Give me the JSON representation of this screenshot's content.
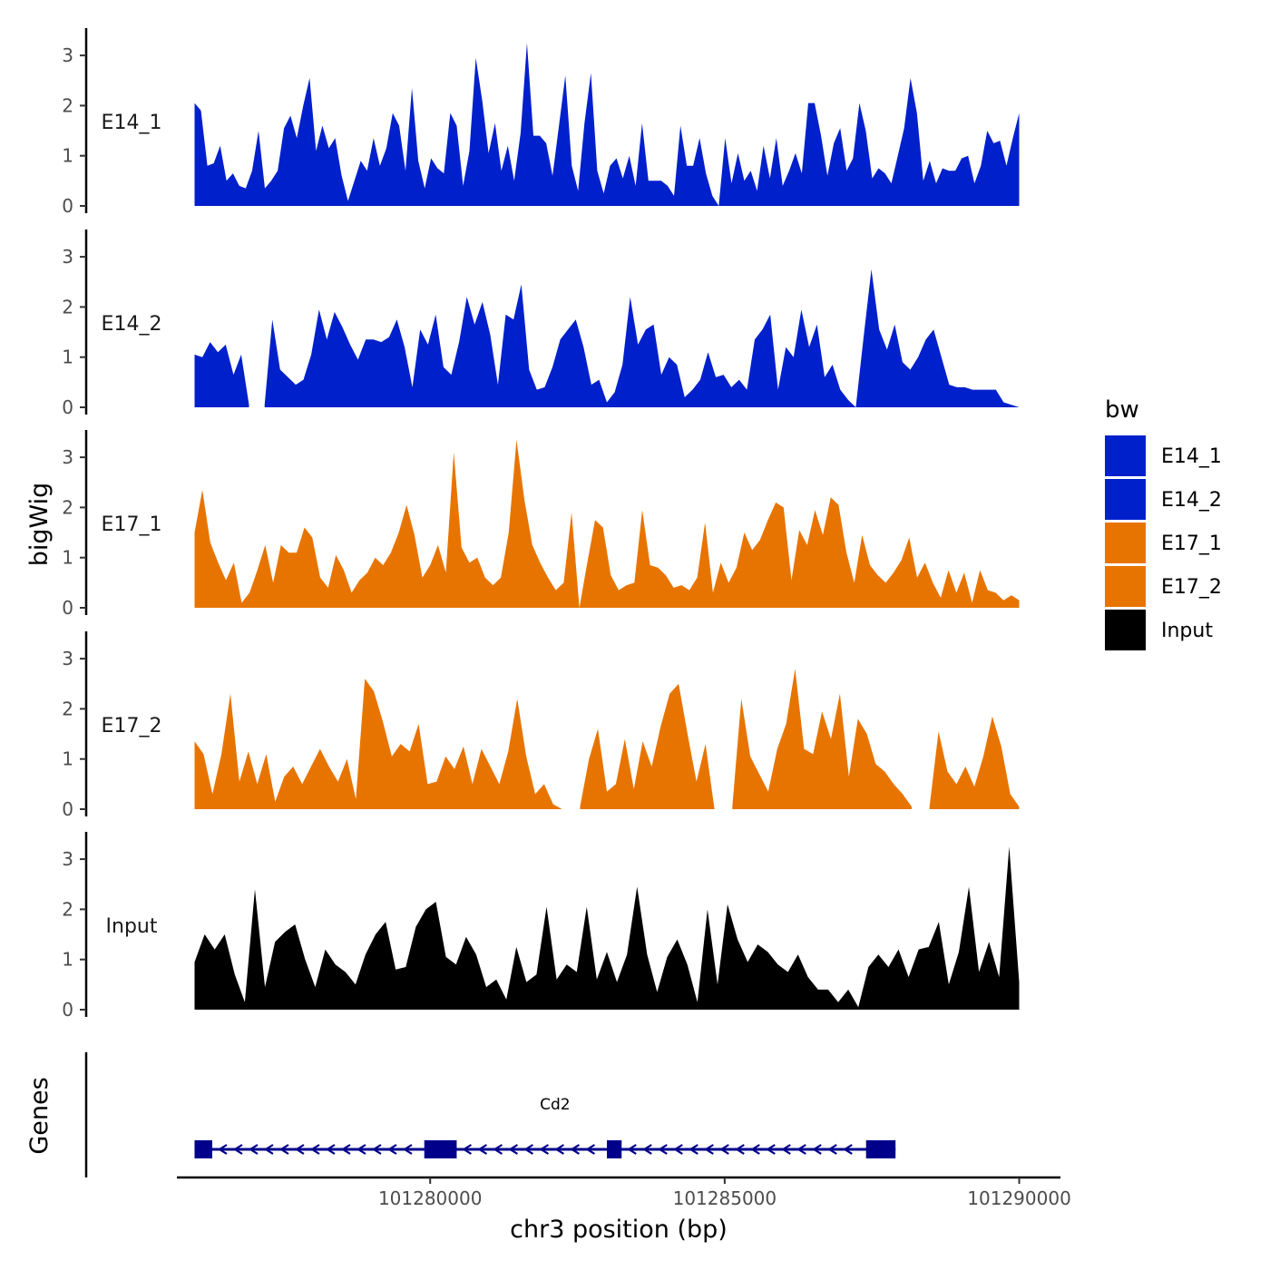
{
  "chart_data": {
    "type": "area",
    "ylabel": "bigWig",
    "xlabel": "chr3 position (bp)",
    "xlim": [
      101275700,
      101290700
    ],
    "ylim": [
      0,
      3.5
    ],
    "y_ticks": [
      "0",
      "1",
      "2",
      "3"
    ],
    "y_tick_values": [
      0,
      1,
      2,
      3
    ],
    "x_ticks": [
      "101280000",
      "101285000",
      "101290000"
    ],
    "x_tick_values": [
      101280000,
      101285000,
      101290000
    ],
    "data_start": 101276000,
    "data_end": 101290000,
    "legend": {
      "title": "bw",
      "position": "right",
      "items": [
        {
          "label": "E14_1",
          "color": "#0020CC"
        },
        {
          "label": "E14_2",
          "color": "#0020CC"
        },
        {
          "label": "E17_1",
          "color": "#E87400"
        },
        {
          "label": "E17_2",
          "color": "#E87400"
        },
        {
          "label": "Input",
          "color": "#000000"
        }
      ]
    },
    "series": [
      {
        "name": "E14_1",
        "color": "#0020CC",
        "values": [
          2.05,
          1.9,
          0.8,
          0.85,
          1.2,
          0.5,
          0.65,
          0.4,
          0.35,
          0.7,
          1.5,
          0.35,
          0.5,
          0.7,
          1.55,
          1.8,
          1.35,
          2.0,
          2.55,
          1.1,
          1.6,
          1.15,
          1.35,
          0.6,
          0.1,
          0.5,
          0.9,
          0.7,
          1.35,
          0.8,
          1.15,
          1.85,
          1.6,
          0.7,
          2.35,
          0.9,
          0.35,
          0.95,
          0.75,
          0.65,
          1.85,
          1.6,
          0.4,
          1.1,
          2.95,
          2.1,
          1.05,
          1.65,
          0.7,
          1.2,
          0.5,
          1.45,
          3.25,
          1.4,
          1.4,
          1.25,
          0.6,
          1.6,
          2.6,
          0.8,
          0.3,
          1.65,
          2.65,
          0.7,
          0.25,
          0.8,
          0.95,
          0.55,
          1.0,
          0.4,
          1.65,
          0.5,
          0.5,
          0.5,
          0.4,
          0.2,
          1.6,
          0.8,
          0.8,
          1.35,
          0.65,
          0.2,
          0.0,
          1.35,
          0.45,
          1.05,
          0.5,
          0.7,
          0.3,
          1.2,
          0.55,
          1.35,
          0.4,
          0.7,
          1.05,
          0.65,
          2.05,
          2.05,
          1.4,
          0.6,
          1.25,
          1.55,
          0.7,
          0.95,
          2.05,
          1.5,
          0.55,
          0.75,
          0.65,
          0.45,
          1.0,
          1.55,
          2.55,
          1.85,
          0.5,
          0.9,
          0.45,
          0.75,
          0.7,
          0.7,
          0.95,
          1.0,
          0.45,
          0.8,
          1.5,
          1.25,
          1.3,
          0.8,
          1.35,
          1.85
        ]
      },
      {
        "name": "E14_2",
        "color": "#0020CC",
        "values": [
          1.05,
          1.0,
          1.3,
          1.1,
          1.25,
          0.65,
          1.05,
          0.05,
          null,
          0.05,
          1.75,
          0.75,
          0.6,
          0.45,
          0.55,
          1.05,
          1.95,
          1.35,
          1.9,
          1.6,
          1.25,
          0.95,
          1.35,
          1.35,
          1.3,
          1.4,
          1.75,
          1.2,
          0.4,
          1.55,
          1.25,
          1.85,
          0.8,
          0.65,
          1.3,
          2.2,
          1.65,
          2.1,
          1.45,
          0.45,
          1.85,
          1.75,
          2.45,
          0.75,
          0.35,
          0.4,
          0.8,
          1.35,
          1.55,
          1.75,
          1.2,
          0.45,
          0.55,
          0.1,
          0.3,
          0.85,
          2.2,
          1.25,
          1.55,
          1.65,
          0.65,
          1.0,
          0.85,
          0.2,
          0.35,
          0.55,
          1.1,
          0.6,
          0.65,
          0.4,
          0.55,
          0.35,
          1.35,
          1.55,
          1.85,
          0.35,
          1.2,
          1.0,
          1.95,
          1.2,
          1.65,
          0.6,
          0.85,
          0.35,
          0.15,
          0.0,
          1.4,
          2.75,
          1.55,
          1.15,
          1.65,
          0.9,
          0.75,
          1.0,
          1.35,
          1.55,
          1.0,
          0.45,
          0.4,
          0.4,
          0.35,
          0.35,
          0.35,
          0.35,
          0.1,
          0.05,
          0.0
        ]
      },
      {
        "name": "E17_1",
        "color": "#E87400",
        "values": [
          1.5,
          2.35,
          1.3,
          0.9,
          0.55,
          0.9,
          0.1,
          0.3,
          0.75,
          1.25,
          0.5,
          1.25,
          1.1,
          1.1,
          1.6,
          1.4,
          0.6,
          0.4,
          1.05,
          0.75,
          0.3,
          0.55,
          0.7,
          1.0,
          0.85,
          1.1,
          1.5,
          2.05,
          1.45,
          0.6,
          0.85,
          1.25,
          0.7,
          3.1,
          1.2,
          0.9,
          1.0,
          0.6,
          0.45,
          0.6,
          1.5,
          3.35,
          2.15,
          1.25,
          0.9,
          0.6,
          0.35,
          0.5,
          1.9,
          0.0,
          0.9,
          1.75,
          1.6,
          0.65,
          0.35,
          0.45,
          0.5,
          1.95,
          0.85,
          0.8,
          0.65,
          0.4,
          0.45,
          0.35,
          0.6,
          1.7,
          0.3,
          0.9,
          0.5,
          0.8,
          1.5,
          1.15,
          1.35,
          1.75,
          2.1,
          2.0,
          0.55,
          1.55,
          1.25,
          1.95,
          1.45,
          2.2,
          2.05,
          1.1,
          0.5,
          1.45,
          0.85,
          0.65,
          0.5,
          0.7,
          0.95,
          1.4,
          0.6,
          0.9,
          0.5,
          0.2,
          0.75,
          0.3,
          0.7,
          0.1,
          0.75,
          0.35,
          0.3,
          0.15,
          0.25,
          0.15
        ]
      },
      {
        "name": "E17_2",
        "color": "#E87400",
        "values": [
          1.35,
          1.1,
          0.3,
          1.1,
          2.3,
          0.55,
          1.15,
          0.5,
          1.1,
          0.15,
          0.65,
          0.85,
          0.5,
          0.85,
          1.2,
          0.85,
          0.55,
          1.0,
          0.2,
          2.6,
          2.35,
          1.75,
          1.05,
          1.3,
          1.15,
          1.7,
          0.5,
          0.55,
          1.05,
          0.8,
          1.25,
          0.5,
          1.2,
          0.85,
          0.5,
          1.15,
          2.2,
          1.05,
          0.3,
          0.5,
          0.1,
          0.0,
          null,
          0.05,
          1.0,
          1.6,
          0.35,
          0.5,
          1.4,
          0.4,
          1.35,
          0.85,
          1.65,
          2.3,
          2.5,
          1.5,
          0.55,
          1.3,
          0.0,
          null,
          0.05,
          2.2,
          1.05,
          0.7,
          0.35,
          1.2,
          1.7,
          2.8,
          1.2,
          1.1,
          1.95,
          1.4,
          2.3,
          0.65,
          1.8,
          1.5,
          0.9,
          0.75,
          0.5,
          0.3,
          0.05,
          null,
          0.05,
          1.55,
          0.75,
          0.5,
          0.85,
          0.45,
          1.05,
          1.85,
          1.25,
          0.3,
          0.05
        ]
      },
      {
        "name": "Input",
        "color": "#000000",
        "values": [
          0.95,
          1.5,
          1.2,
          1.5,
          0.7,
          0.15,
          2.4,
          0.45,
          1.35,
          1.55,
          1.7,
          1.0,
          0.45,
          1.2,
          0.9,
          0.75,
          0.5,
          1.1,
          1.5,
          1.75,
          0.8,
          0.85,
          1.65,
          2.0,
          2.15,
          1.05,
          0.9,
          1.45,
          1.1,
          0.45,
          0.6,
          0.2,
          1.25,
          0.55,
          0.7,
          2.05,
          0.6,
          0.9,
          0.75,
          2.05,
          0.6,
          1.15,
          0.55,
          1.1,
          2.45,
          1.1,
          0.35,
          1.05,
          1.4,
          0.9,
          0.15,
          2.0,
          0.5,
          2.1,
          1.4,
          0.95,
          1.3,
          1.15,
          0.9,
          0.75,
          1.1,
          0.65,
          0.4,
          0.4,
          0.15,
          0.4,
          0.05,
          0.85,
          1.1,
          0.85,
          1.2,
          0.65,
          1.2,
          1.25,
          1.75,
          0.5,
          1.15,
          2.45,
          0.75,
          1.35,
          0.65,
          3.25,
          0.55
        ]
      }
    ],
    "genes": [
      {
        "name": "Cd2",
        "start": 101276000,
        "end": 101287900,
        "strand": "-",
        "color": "#00008B",
        "exons": [
          [
            101276000,
            101276300
          ],
          [
            101279900,
            101280450
          ],
          [
            101283000,
            101283250
          ],
          [
            101287400,
            101287900
          ]
        ]
      }
    ],
    "gene_track_label": "Genes"
  }
}
